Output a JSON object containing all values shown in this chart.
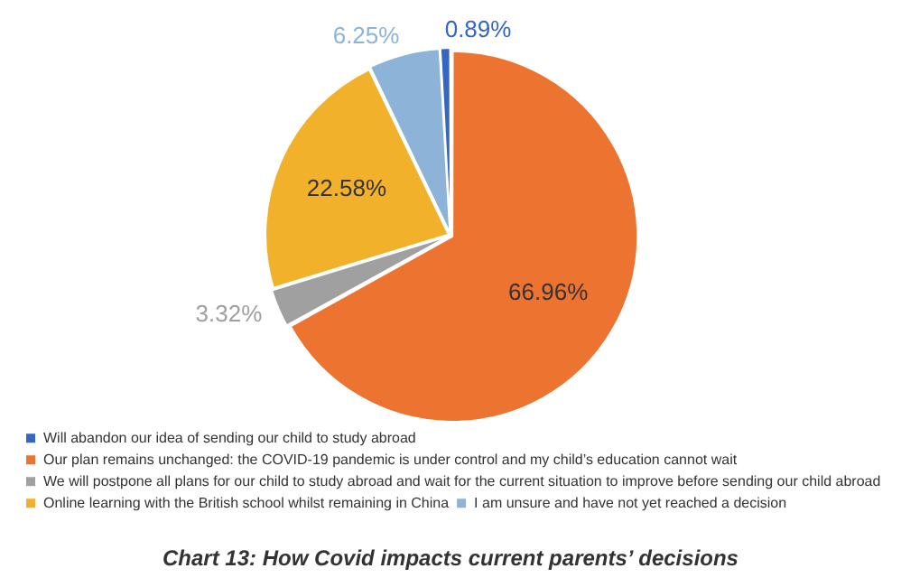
{
  "chart_data": {
    "type": "pie",
    "title": "Chart 13: How Covid impacts current parents’ decisions",
    "categories": [
      "Will abandon our idea of sending our child to study abroad",
      "Our plan remains unchanged: the COVID-19 pandemic is under control and my child’s education cannot wait",
      "We will postpone all plans for our child to study abroad and wait for the current situation to improve before sending our child abroad",
      "Online learning with the British school whilst remaining in China",
      "I am unsure and have not yet reached a decision"
    ],
    "values": [
      0.89,
      66.96,
      3.32,
      22.58,
      6.25
    ],
    "colors": [
      "#3566c0",
      "#ec7330",
      "#a0a0a0",
      "#f2b12a",
      "#8db4d8"
    ],
    "value_labels": [
      "0.89%",
      "66.96%",
      "3.32%",
      "22.58%",
      "6.25%"
    ],
    "legend": "bottom"
  }
}
